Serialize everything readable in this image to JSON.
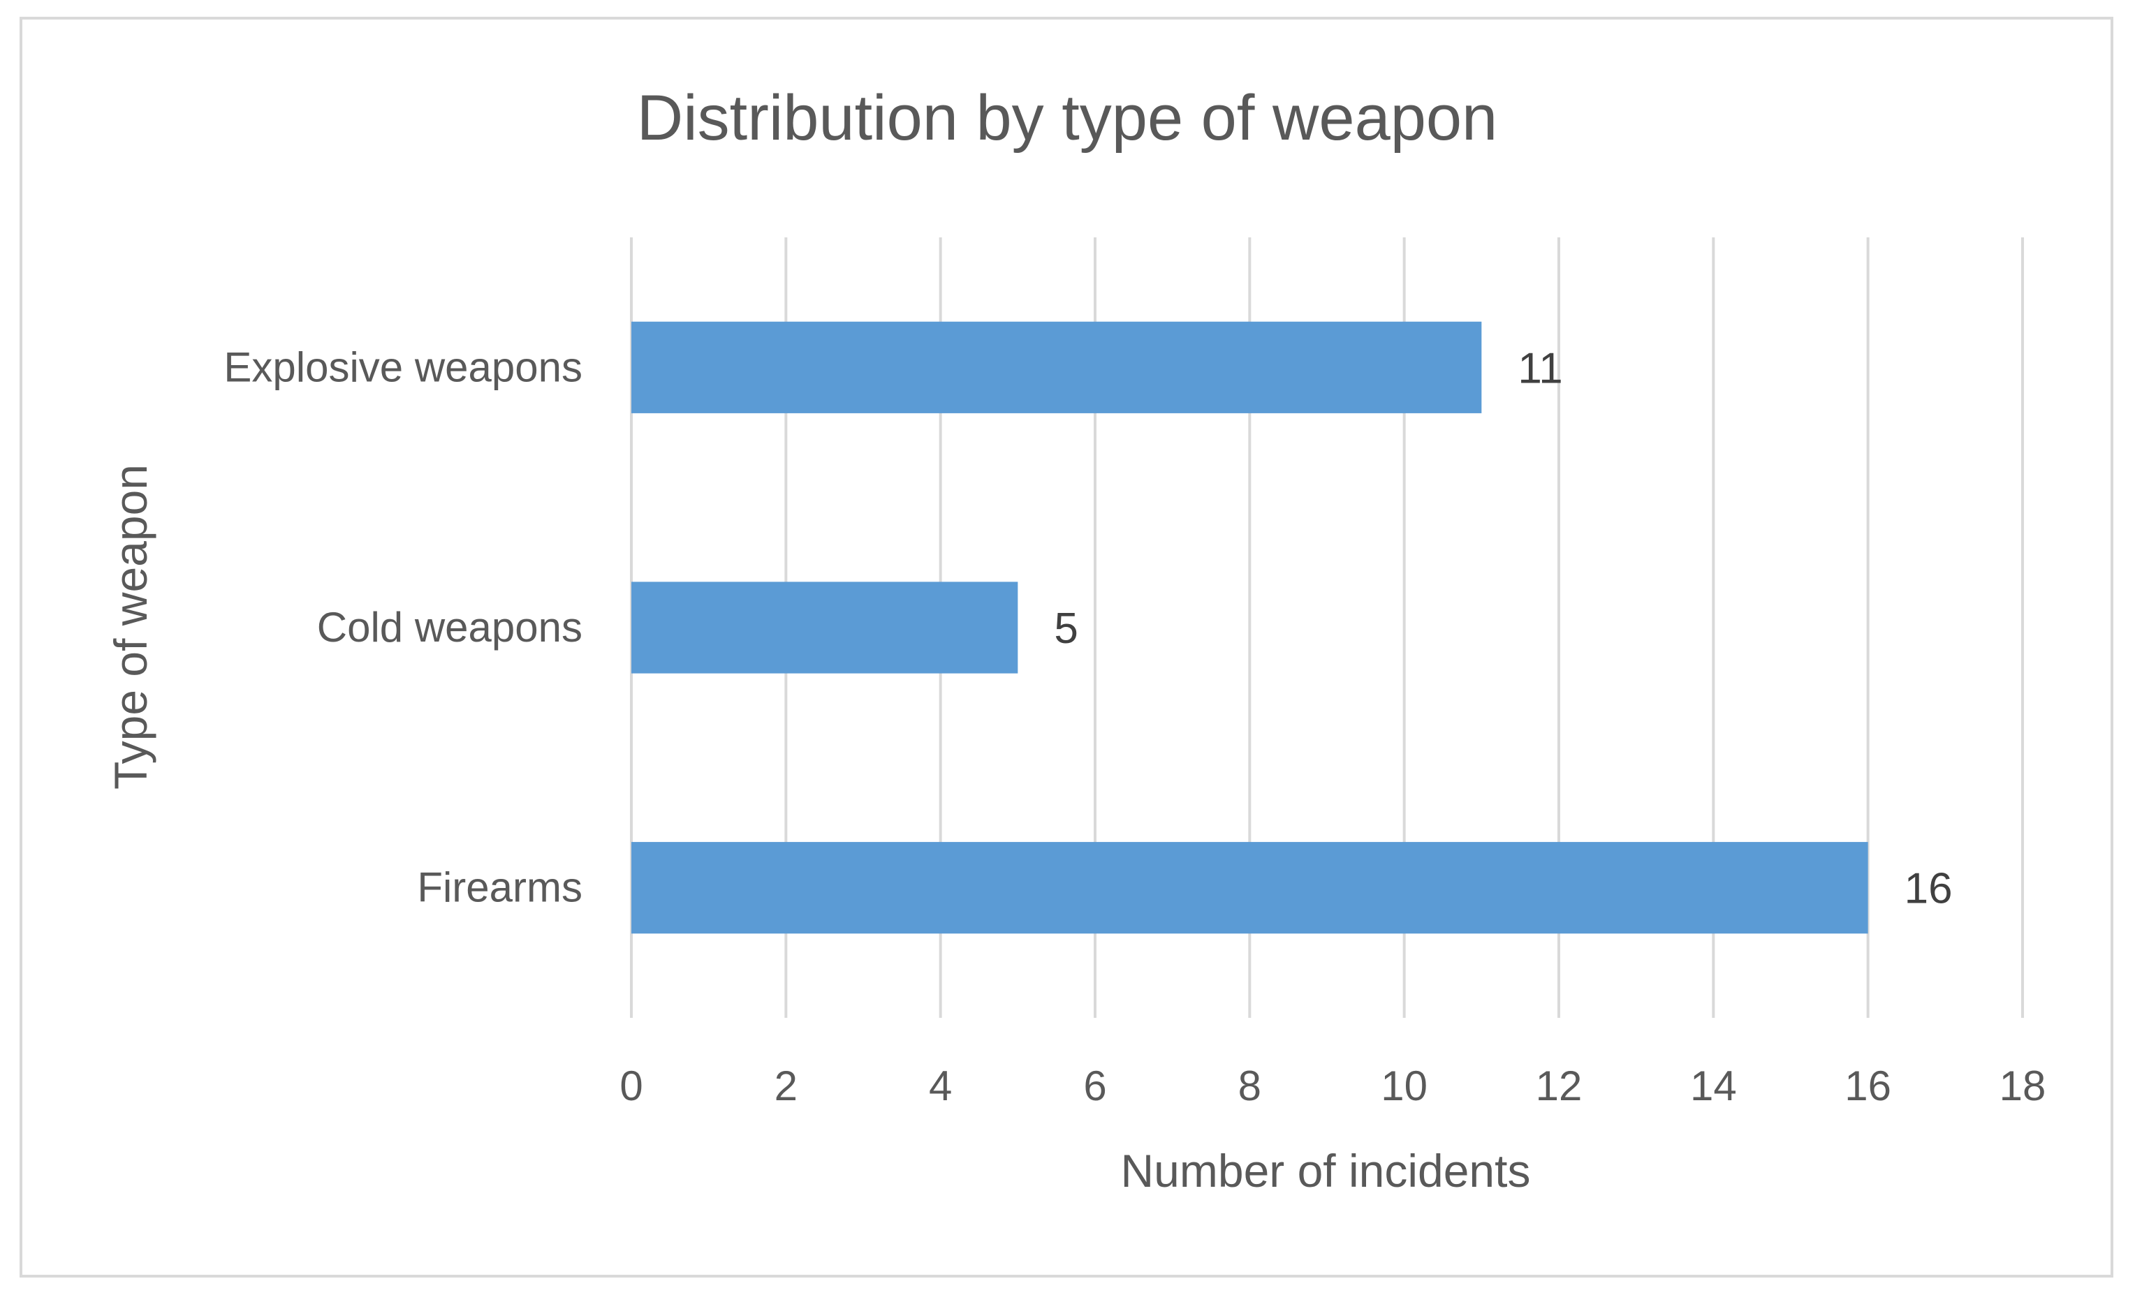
{
  "chart_data": {
    "type": "bar",
    "orientation": "horizontal",
    "title": "Distribution by type of weapon",
    "xlabel": "Number of incidents",
    "ylabel": "Type of weapon",
    "categories": [
      "Explosive weapons",
      "Cold weapons",
      "Firearms"
    ],
    "values": [
      11,
      5,
      16
    ],
    "data_labels": [
      "11",
      "5",
      "16"
    ],
    "xlim": [
      0,
      18
    ],
    "x_ticks": [
      0,
      2,
      4,
      6,
      8,
      10,
      12,
      14,
      16,
      18
    ],
    "grid": true,
    "legend": "none",
    "colors": {
      "bar": "#5b9bd5",
      "grid": "#d9d9d9",
      "text": "#595959",
      "frame": "#d9d9d9"
    }
  }
}
